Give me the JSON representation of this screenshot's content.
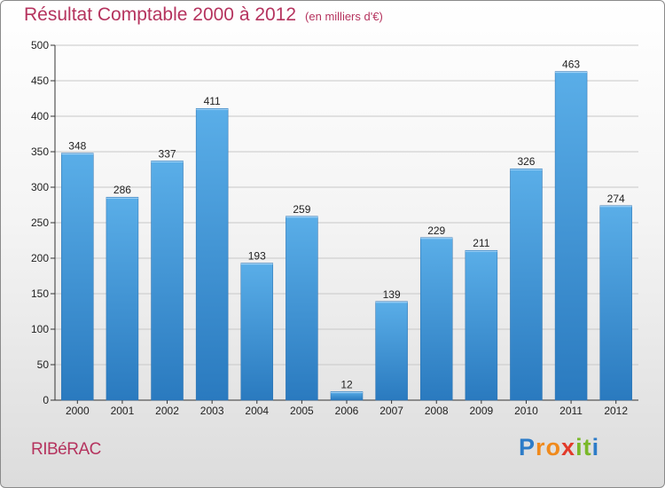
{
  "chart_data": {
    "type": "bar",
    "title": "Résultat Comptable 2000 à 2012",
    "subtitle": "(en milliers d'€)",
    "categories": [
      "2000",
      "2001",
      "2002",
      "2003",
      "2004",
      "2005",
      "2006",
      "2007",
      "2008",
      "2009",
      "2010",
      "2011",
      "2012"
    ],
    "values": [
      348,
      286,
      337,
      411,
      193,
      259,
      12,
      139,
      229,
      211,
      326,
      463,
      274
    ],
    "ylim": [
      0,
      500
    ],
    "yticks": [
      0,
      50,
      100,
      150,
      200,
      250,
      300,
      350,
      400,
      450,
      500
    ],
    "xlabel": "",
    "ylabel": "",
    "grid": true,
    "bar_color_top": "#5aaee8",
    "bar_color_bottom": "#2a7abf"
  },
  "footer": {
    "town": "RIBéRAC",
    "brand_letters": [
      "P",
      "r",
      "o",
      "x",
      "i",
      "t",
      "i"
    ],
    "brand_colors": [
      "#2d7cc8",
      "#f08a1c",
      "#f08a1c",
      "#e23a2a",
      "#7ab829",
      "#7ab829",
      "#2d7cc8"
    ]
  },
  "colors": {
    "title": "#b5335e",
    "axis": "#333333",
    "grid": "#c8c8c8"
  }
}
